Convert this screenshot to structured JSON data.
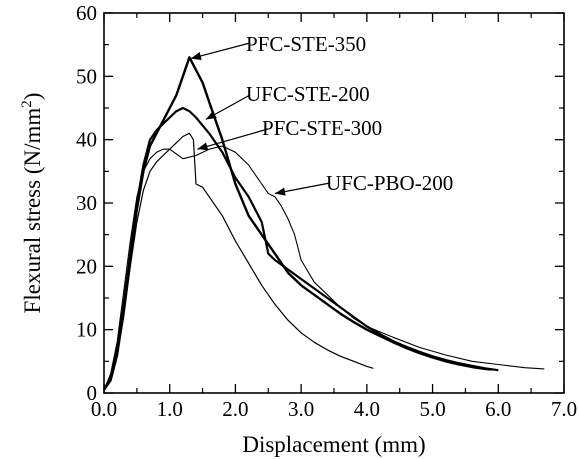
{
  "chart_data": {
    "type": "line",
    "xlabel": "Displacement  (mm)",
    "ylabel_main": "Flexural stress  (N/mm",
    "ylabel_sup": "2",
    "ylabel_end": ")",
    "xlim": [
      0.0,
      7.0
    ],
    "ylim": [
      0,
      60
    ],
    "x_ticks": [
      0.0,
      1.0,
      2.0,
      3.0,
      4.0,
      5.0,
      6.0,
      7.0
    ],
    "x_tick_labels": [
      "0.0",
      "1.0",
      "2.0",
      "3.0",
      "4.0",
      "5.0",
      "6.0",
      "7.0"
    ],
    "y_ticks": [
      0,
      10,
      20,
      30,
      40,
      50,
      60
    ],
    "y_tick_labels": [
      "0",
      "10",
      "20",
      "30",
      "40",
      "50",
      "60"
    ],
    "grid": false,
    "legend": "annotations with arrows",
    "series": [
      {
        "name": "PFC-STE-350",
        "x": [
          0.0,
          0.1,
          0.2,
          0.3,
          0.4,
          0.5,
          0.6,
          0.7,
          0.8,
          0.9,
          1.0,
          1.1,
          1.2,
          1.3,
          1.4,
          1.5,
          1.6,
          1.8,
          2.0,
          2.2,
          2.4,
          2.6,
          2.8,
          3.0,
          3.2,
          3.4,
          3.6,
          3.8,
          4.0,
          4.2,
          4.4,
          4.6,
          4.8,
          5.0,
          5.2,
          5.4,
          5.6,
          5.8,
          5.9
        ],
        "y": [
          0.5,
          2,
          6,
          13,
          21,
          29,
          35,
          39,
          41,
          43,
          45,
          47,
          50,
          53,
          51,
          49,
          46,
          40,
          33,
          28,
          25,
          22,
          19,
          17,
          15.5,
          14,
          12.5,
          11.2,
          10,
          9,
          8,
          7.1,
          6.3,
          5.6,
          5,
          4.5,
          4.1,
          3.8,
          3.7
        ]
      },
      {
        "name": "UFC-STE-200",
        "x": [
          0.0,
          0.1,
          0.2,
          0.3,
          0.4,
          0.5,
          0.6,
          0.7,
          0.8,
          0.9,
          1.0,
          1.1,
          1.2,
          1.3,
          1.4,
          1.6,
          1.8,
          2.0,
          2.2,
          2.4,
          2.5,
          2.6,
          2.8,
          3.0,
          3.2,
          3.4,
          3.6,
          3.8,
          4.0,
          4.2,
          4.4,
          4.6,
          4.8,
          5.0,
          5.2,
          5.4,
          5.6,
          5.8,
          6.0
        ],
        "y": [
          0.5,
          2.5,
          7,
          14,
          22,
          30,
          36,
          40,
          41.5,
          42.5,
          43.5,
          44.5,
          45,
          44.5,
          43.5,
          41,
          38,
          34,
          31,
          27,
          22,
          21,
          19.5,
          18,
          16.5,
          15,
          13.5,
          12,
          10.5,
          9.3,
          8.2,
          7.3,
          6.5,
          5.8,
          5.2,
          4.7,
          4.3,
          3.9,
          3.6
        ]
      },
      {
        "name": "PFC-STE-300",
        "x": [
          0.0,
          0.1,
          0.2,
          0.3,
          0.4,
          0.5,
          0.6,
          0.7,
          0.8,
          0.9,
          1.0,
          1.1,
          1.2,
          1.3,
          1.36,
          1.4,
          1.5,
          1.6,
          1.8,
          2.0,
          2.2,
          2.4,
          2.6,
          2.8,
          3.0,
          3.2,
          3.4,
          3.6,
          3.8,
          4.0,
          4.1
        ],
        "y": [
          0.5,
          2,
          6,
          12,
          20,
          27,
          32,
          35,
          36.5,
          37.5,
          38.5,
          39.5,
          40.5,
          41,
          40,
          33,
          32.5,
          31,
          28,
          24,
          20.5,
          17,
          14,
          11.5,
          9.5,
          8,
          6.8,
          5.8,
          5,
          4.2,
          3.9
        ]
      },
      {
        "name": "UFC-PBO-200",
        "x": [
          0.0,
          0.1,
          0.2,
          0.3,
          0.4,
          0.5,
          0.6,
          0.7,
          0.8,
          0.9,
          1.0,
          1.2,
          1.4,
          1.6,
          1.8,
          2.0,
          2.2,
          2.4,
          2.5,
          2.6,
          2.7,
          2.8,
          2.9,
          3.0,
          3.2,
          3.4,
          3.6,
          3.8,
          4.0,
          4.4,
          4.8,
          5.2,
          5.6,
          6.0,
          6.4,
          6.7
        ],
        "y": [
          0.5,
          3,
          8,
          16,
          24,
          31,
          35,
          37,
          38,
          38.5,
          38.5,
          37,
          37.5,
          38.5,
          39,
          38,
          36,
          33,
          31.5,
          31,
          29.5,
          27.5,
          25,
          21,
          17.5,
          15.5,
          13.5,
          11.8,
          10.5,
          8.8,
          7.2,
          6,
          5,
          4.5,
          4,
          3.8
        ]
      }
    ],
    "annotations": [
      {
        "text": "PFC-STE-350",
        "series": "PFC-STE-350",
        "target": [
          1.32,
          52.8
        ]
      },
      {
        "text": "UFC-STE-200",
        "series": "UFC-STE-200",
        "target": [
          1.55,
          43.2
        ]
      },
      {
        "text": "PFC-STE-300",
        "series": "PFC-STE-300",
        "target": [
          1.42,
          38.5
        ]
      },
      {
        "text": "UFC-PBO-200",
        "series": "UFC-PBO-200",
        "target": [
          2.6,
          31.5
        ]
      }
    ]
  }
}
